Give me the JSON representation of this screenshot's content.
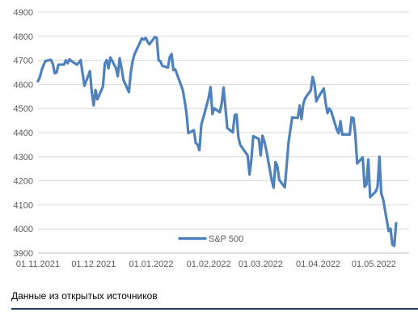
{
  "chart_data": {
    "type": "line",
    "title": "",
    "xlabel": "",
    "ylabel": "",
    "ylim": [
      3900,
      4900
    ],
    "yticks": [
      3900,
      4000,
      4100,
      4200,
      4300,
      4400,
      4500,
      4600,
      4700,
      4800,
      4900
    ],
    "xlim": [
      "2021-11-01",
      "2022-05-20"
    ],
    "xticks": [
      "01.11.2021",
      "01.12.2021",
      "01.01.2022",
      "01.02.2022",
      "01.03.2022",
      "01.04.2022",
      "01.05.2022"
    ],
    "grid": {
      "horizontal": true,
      "vertical": false
    },
    "legend": {
      "position": "bottom-center"
    },
    "series": [
      {
        "name": "S&P 500",
        "color": "#4f81bd",
        "points": [
          [
            "2021-11-01",
            4613
          ],
          [
            "2021-11-02",
            4631
          ],
          [
            "2021-11-03",
            4660
          ],
          [
            "2021-11-04",
            4680
          ],
          [
            "2021-11-05",
            4697
          ],
          [
            "2021-11-08",
            4702
          ],
          [
            "2021-11-09",
            4685
          ],
          [
            "2021-11-10",
            4646
          ],
          [
            "2021-11-11",
            4649
          ],
          [
            "2021-11-12",
            4682
          ],
          [
            "2021-11-15",
            4682
          ],
          [
            "2021-11-16",
            4700
          ],
          [
            "2021-11-17",
            4688
          ],
          [
            "2021-11-18",
            4704
          ],
          [
            "2021-11-19",
            4697
          ],
          [
            "2021-11-22",
            4682
          ],
          [
            "2021-11-23",
            4690
          ],
          [
            "2021-11-24",
            4701
          ],
          [
            "2021-11-26",
            4594
          ],
          [
            "2021-11-29",
            4655
          ],
          [
            "2021-11-30",
            4567
          ],
          [
            "2021-12-01",
            4513
          ],
          [
            "2021-12-02",
            4577
          ],
          [
            "2021-12-03",
            4538
          ],
          [
            "2021-12-06",
            4591
          ],
          [
            "2021-12-07",
            4686
          ],
          [
            "2021-12-08",
            4701
          ],
          [
            "2021-12-09",
            4667
          ],
          [
            "2021-12-10",
            4712
          ],
          [
            "2021-12-13",
            4668
          ],
          [
            "2021-12-14",
            4634
          ],
          [
            "2021-12-15",
            4709
          ],
          [
            "2021-12-16",
            4669
          ],
          [
            "2021-12-17",
            4620
          ],
          [
            "2021-12-20",
            4568
          ],
          [
            "2021-12-21",
            4649
          ],
          [
            "2021-12-22",
            4697
          ],
          [
            "2021-12-23",
            4725
          ],
          [
            "2021-12-27",
            4791
          ],
          [
            "2021-12-28",
            4786
          ],
          [
            "2021-12-29",
            4793
          ],
          [
            "2021-12-30",
            4778
          ],
          [
            "2021-12-31",
            4766
          ],
          [
            "2022-01-03",
            4797
          ],
          [
            "2022-01-04",
            4793
          ],
          [
            "2022-01-05",
            4700
          ],
          [
            "2022-01-06",
            4696
          ],
          [
            "2022-01-07",
            4677
          ],
          [
            "2022-01-10",
            4670
          ],
          [
            "2022-01-11",
            4713
          ],
          [
            "2022-01-12",
            4726
          ],
          [
            "2022-01-13",
            4659
          ],
          [
            "2022-01-14",
            4662
          ],
          [
            "2022-01-18",
            4577
          ],
          [
            "2022-01-19",
            4533
          ],
          [
            "2022-01-20",
            4483
          ],
          [
            "2022-01-21",
            4398
          ],
          [
            "2022-01-24",
            4410
          ],
          [
            "2022-01-25",
            4357
          ],
          [
            "2022-01-26",
            4350
          ],
          [
            "2022-01-27",
            4327
          ],
          [
            "2022-01-28",
            4432
          ],
          [
            "2022-01-31",
            4516
          ],
          [
            "2022-02-01",
            4546
          ],
          [
            "2022-02-02",
            4589
          ],
          [
            "2022-02-03",
            4477
          ],
          [
            "2022-02-04",
            4501
          ],
          [
            "2022-02-07",
            4484
          ],
          [
            "2022-02-08",
            4521
          ],
          [
            "2022-02-09",
            4587
          ],
          [
            "2022-02-10",
            4504
          ],
          [
            "2022-02-11",
            4419
          ],
          [
            "2022-02-14",
            4401
          ],
          [
            "2022-02-15",
            4472
          ],
          [
            "2022-02-16",
            4475
          ],
          [
            "2022-02-17",
            4380
          ],
          [
            "2022-02-18",
            4349
          ],
          [
            "2022-02-22",
            4305
          ],
          [
            "2022-02-23",
            4226
          ],
          [
            "2022-02-24",
            4288
          ],
          [
            "2022-02-25",
            4385
          ],
          [
            "2022-02-28",
            4374
          ],
          [
            "2022-03-01",
            4306
          ],
          [
            "2022-03-02",
            4387
          ],
          [
            "2022-03-03",
            4363
          ],
          [
            "2022-03-04",
            4329
          ],
          [
            "2022-03-07",
            4201
          ],
          [
            "2022-03-08",
            4171
          ],
          [
            "2022-03-09",
            4278
          ],
          [
            "2022-03-10",
            4260
          ],
          [
            "2022-03-11",
            4204
          ],
          [
            "2022-03-14",
            4173
          ],
          [
            "2022-03-15",
            4262
          ],
          [
            "2022-03-16",
            4358
          ],
          [
            "2022-03-17",
            4412
          ],
          [
            "2022-03-18",
            4463
          ],
          [
            "2022-03-21",
            4461
          ],
          [
            "2022-03-22",
            4512
          ],
          [
            "2022-03-23",
            4456
          ],
          [
            "2022-03-24",
            4520
          ],
          [
            "2022-03-25",
            4543
          ],
          [
            "2022-03-28",
            4575
          ],
          [
            "2022-03-29",
            4631
          ],
          [
            "2022-03-30",
            4602
          ],
          [
            "2022-03-31",
            4530
          ],
          [
            "2022-04-01",
            4546
          ],
          [
            "2022-04-04",
            4583
          ],
          [
            "2022-04-05",
            4525
          ],
          [
            "2022-04-06",
            4481
          ],
          [
            "2022-04-07",
            4500
          ],
          [
            "2022-04-08",
            4488
          ],
          [
            "2022-04-11",
            4413
          ],
          [
            "2022-04-12",
            4397
          ],
          [
            "2022-04-13",
            4447
          ],
          [
            "2022-04-14",
            4392
          ],
          [
            "2022-04-18",
            4392
          ],
          [
            "2022-04-19",
            4463
          ],
          [
            "2022-04-20",
            4460
          ],
          [
            "2022-04-21",
            4394
          ],
          [
            "2022-04-22",
            4272
          ],
          [
            "2022-04-25",
            4297
          ],
          [
            "2022-04-26",
            4175
          ],
          [
            "2022-04-27",
            4184
          ],
          [
            "2022-04-28",
            4288
          ],
          [
            "2022-04-29",
            4132
          ],
          [
            "2022-05-02",
            4155
          ],
          [
            "2022-05-03",
            4175
          ],
          [
            "2022-05-04",
            4300
          ],
          [
            "2022-05-05",
            4147
          ],
          [
            "2022-05-06",
            4123
          ],
          [
            "2022-05-09",
            3991
          ],
          [
            "2022-05-10",
            4001
          ],
          [
            "2022-05-11",
            3935
          ],
          [
            "2022-05-12",
            3930
          ],
          [
            "2022-05-13",
            4024
          ]
        ]
      }
    ]
  },
  "caption": "Данные из открытых источников"
}
